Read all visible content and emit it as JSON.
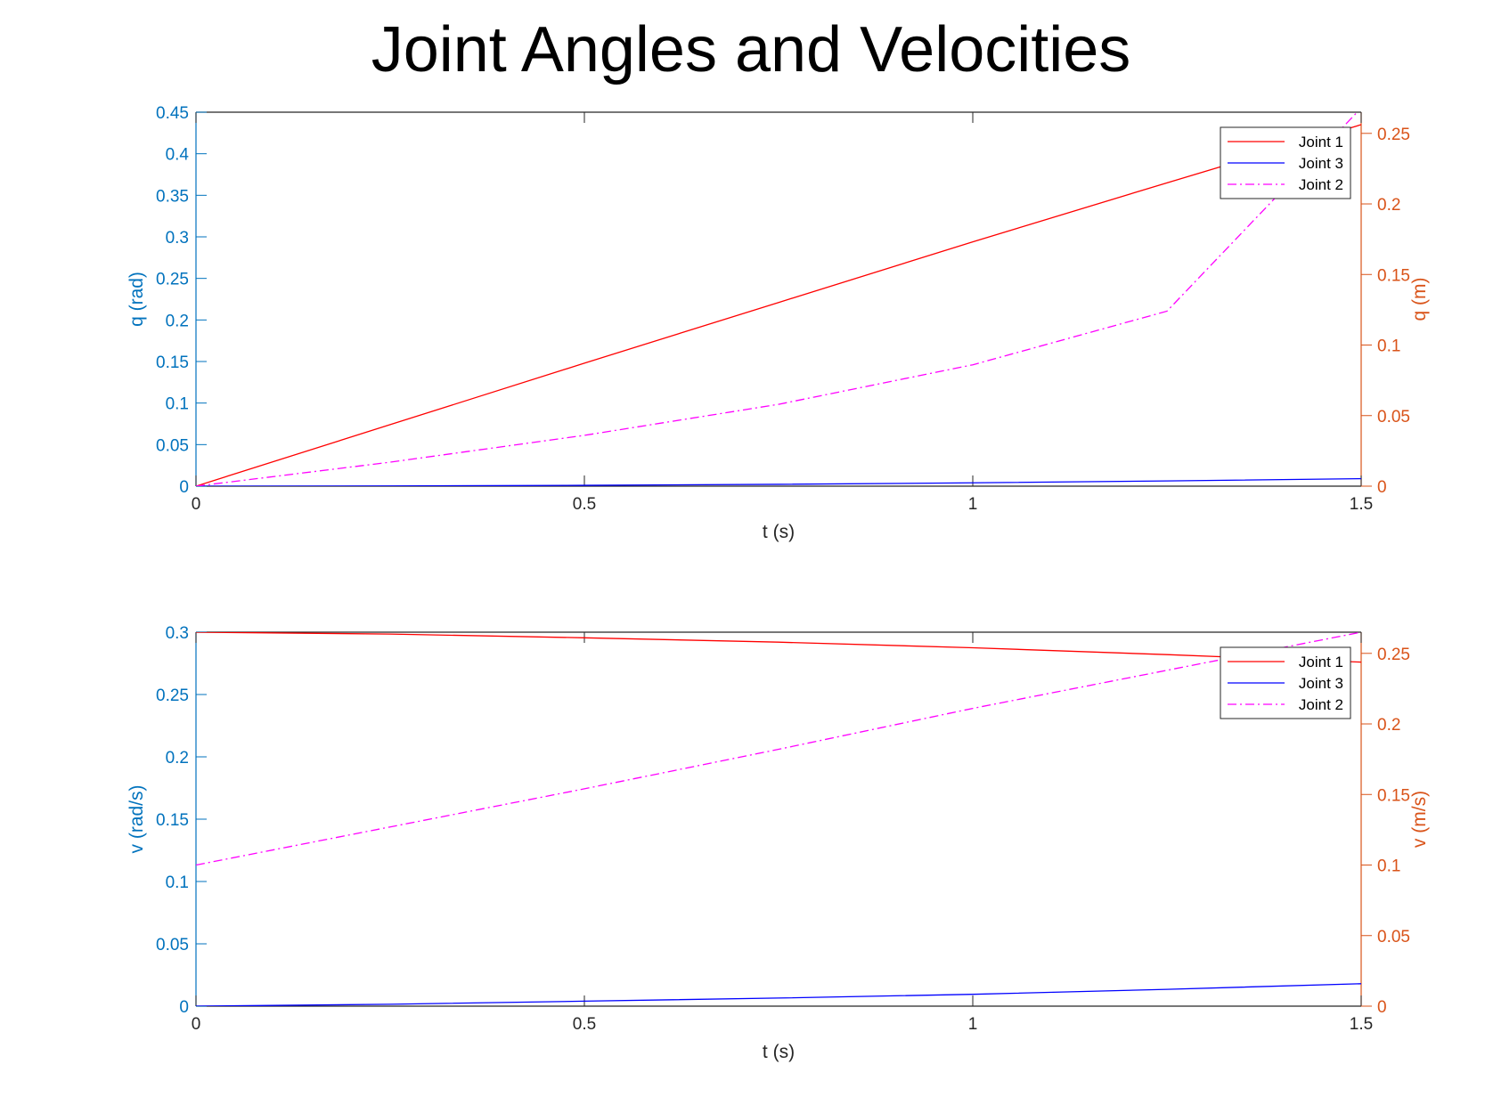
{
  "title": "Joint Angles and Velocities",
  "colors": {
    "left_axis": "#0072BD",
    "right_axis": "#D95319",
    "joint1": "#FF0000",
    "joint3": "#0000FF",
    "joint2": "#FF00FF",
    "frame": "#262626"
  },
  "chart_data": [
    {
      "type": "line",
      "xlabel": "t (s)",
      "ylabel_left": "q (rad)",
      "ylabel_right": "q (m)",
      "xlim": [
        0,
        1.5
      ],
      "ylim_left": [
        0,
        0.45
      ],
      "ylim_right": [
        0,
        0.265
      ],
      "xticks": [
        "0",
        "0.5",
        "1",
        "1.5"
      ],
      "xtick_values": [
        0,
        0.5,
        1,
        1.5
      ],
      "yticks_left": [
        "0",
        "0.05",
        "0.1",
        "0.15",
        "0.2",
        "0.25",
        "0.3",
        "0.35",
        "0.4",
        "0.45"
      ],
      "ytick_values_left": [
        0,
        0.05,
        0.1,
        0.15,
        0.2,
        0.25,
        0.3,
        0.35,
        0.4,
        0.45
      ],
      "yticks_right": [
        "0",
        "0.05",
        "0.1",
        "0.15",
        "0.2",
        "0.25"
      ],
      "ytick_values_right": [
        0,
        0.05,
        0.1,
        0.15,
        0.2,
        0.25
      ],
      "legend_position": "top-right",
      "legend": [
        "Joint 1",
        "Joint 3",
        "Joint 2"
      ],
      "x": [
        0,
        0.25,
        0.5,
        0.75,
        1.0,
        1.25,
        1.5
      ],
      "series": [
        {
          "name": "Joint 1",
          "axis": "left",
          "style": "solid",
          "color": "#FF0000",
          "values": [
            0,
            0.074,
            0.148,
            0.221,
            0.294,
            0.365,
            0.435
          ]
        },
        {
          "name": "Joint 3",
          "axis": "left",
          "style": "solid",
          "color": "#0000FF",
          "values": [
            0,
            0.0002,
            0.001,
            0.0022,
            0.004,
            0.0063,
            0.009
          ]
        },
        {
          "name": "Joint 2",
          "axis": "right",
          "style": "dashdot",
          "color": "#FF00FF",
          "values": [
            0,
            0.017,
            0.036,
            0.058,
            0.086,
            0.124,
            0.268
          ]
        }
      ]
    },
    {
      "type": "line",
      "xlabel": "t (s)",
      "ylabel_left": "v (rad/s)",
      "ylabel_right": "v (m/s)",
      "xlim": [
        0,
        1.5
      ],
      "ylim_left": [
        0,
        0.3
      ],
      "ylim_right": [
        0,
        0.265
      ],
      "xticks": [
        "0",
        "0.5",
        "1",
        "1.5"
      ],
      "xtick_values": [
        0,
        0.5,
        1,
        1.5
      ],
      "yticks_left": [
        "0",
        "0.05",
        "0.1",
        "0.15",
        "0.2",
        "0.25",
        "0.3"
      ],
      "ytick_values_left": [
        0,
        0.05,
        0.1,
        0.15,
        0.2,
        0.25,
        0.3
      ],
      "yticks_right": [
        "0",
        "0.05",
        "0.1",
        "0.15",
        "0.2",
        "0.25"
      ],
      "ytick_values_right": [
        0,
        0.05,
        0.1,
        0.15,
        0.2,
        0.25
      ],
      "legend_position": "top-right",
      "legend": [
        "Joint 1",
        "Joint 3",
        "Joint 2"
      ],
      "x": [
        0,
        0.25,
        0.5,
        0.75,
        1.0,
        1.25,
        1.5
      ],
      "series": [
        {
          "name": "Joint 1",
          "axis": "left",
          "style": "solid",
          "color": "#FF0000",
          "values": [
            0.3,
            0.2985,
            0.2955,
            0.292,
            0.2875,
            0.282,
            0.276
          ]
        },
        {
          "name": "Joint 3",
          "axis": "left",
          "style": "solid",
          "color": "#0000FF",
          "values": [
            0,
            0.0015,
            0.004,
            0.0065,
            0.0095,
            0.0135,
            0.018
          ]
        },
        {
          "name": "Joint 2",
          "axis": "right",
          "style": "dashdot",
          "color": "#FF00FF",
          "values": [
            0.1,
            0.127,
            0.154,
            0.182,
            0.211,
            0.238,
            0.265
          ]
        }
      ]
    }
  ]
}
